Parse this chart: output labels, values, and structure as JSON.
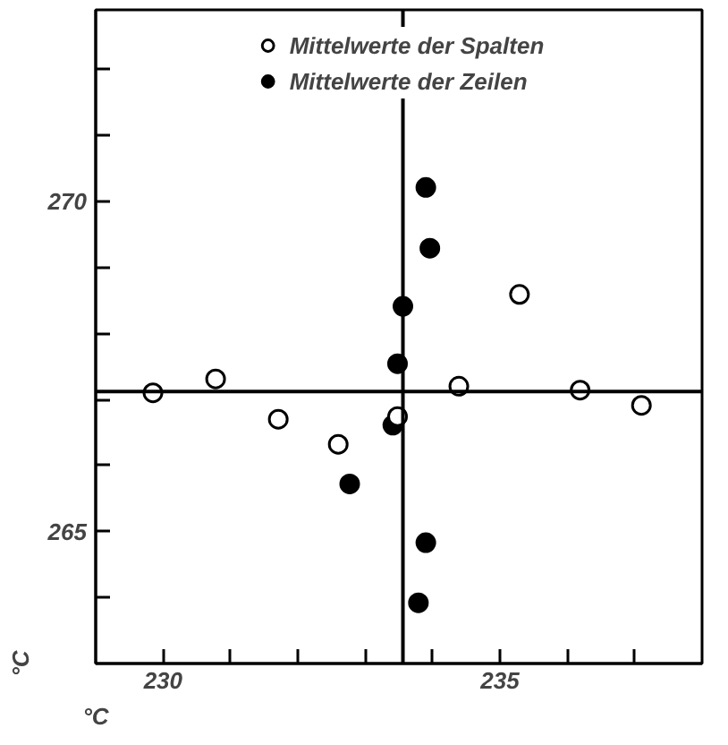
{
  "chart_data": {
    "type": "scatter",
    "xlabel": "°C",
    "ylabel": "°C",
    "legend": "top",
    "grid": false,
    "marker": "circle",
    "xlim": [
      229,
      238
    ],
    "ylim": [
      263,
      272.9
    ],
    "xticks": [
      {
        "value": 230,
        "label": "230"
      },
      {
        "value": 231,
        "label": null
      },
      {
        "value": 232,
        "label": null
      },
      {
        "value": 233,
        "label": null
      },
      {
        "value": 234,
        "label": null
      },
      {
        "value": 235,
        "label": "235"
      },
      {
        "value": 236,
        "label": null
      },
      {
        "value": 237,
        "label": null
      }
    ],
    "yticks": [
      {
        "value": 264,
        "label": null
      },
      {
        "value": 265,
        "label": "265"
      },
      {
        "value": 266,
        "label": null
      },
      {
        "value": 267,
        "label": null
      },
      {
        "value": 268,
        "label": null
      },
      {
        "value": 269,
        "label": null
      },
      {
        "value": 270,
        "label": "270"
      },
      {
        "value": 271,
        "label": null
      },
      {
        "value": 272,
        "label": null
      }
    ],
    "ref_lines": [
      {
        "axis": "y",
        "value": 267.12,
        "color": "#000000"
      },
      {
        "axis": "x",
        "value": 233.56,
        "color": "#000000"
      }
    ],
    "series": [
      {
        "name": "Mittelwerte der Spalten",
        "color": "#ffffff",
        "x": [
          229.85,
          230.78,
          231.71,
          232.6,
          233.48,
          234.39,
          236.19,
          237.1,
          235.29
        ],
        "values": [
          267.1,
          267.31,
          266.7,
          266.32,
          266.74,
          267.2,
          267.14,
          266.91,
          268.59
        ]
      },
      {
        "name": "Mittelwerte der Zeilen",
        "color": "#000000",
        "x": [
          233.9,
          233.96,
          233.56,
          233.48,
          233.41,
          232.77,
          233.9,
          233.79
        ],
        "values": [
          270.21,
          269.29,
          268.41,
          267.54,
          266.61,
          265.72,
          264.83,
          263.92
        ]
      }
    ]
  }
}
